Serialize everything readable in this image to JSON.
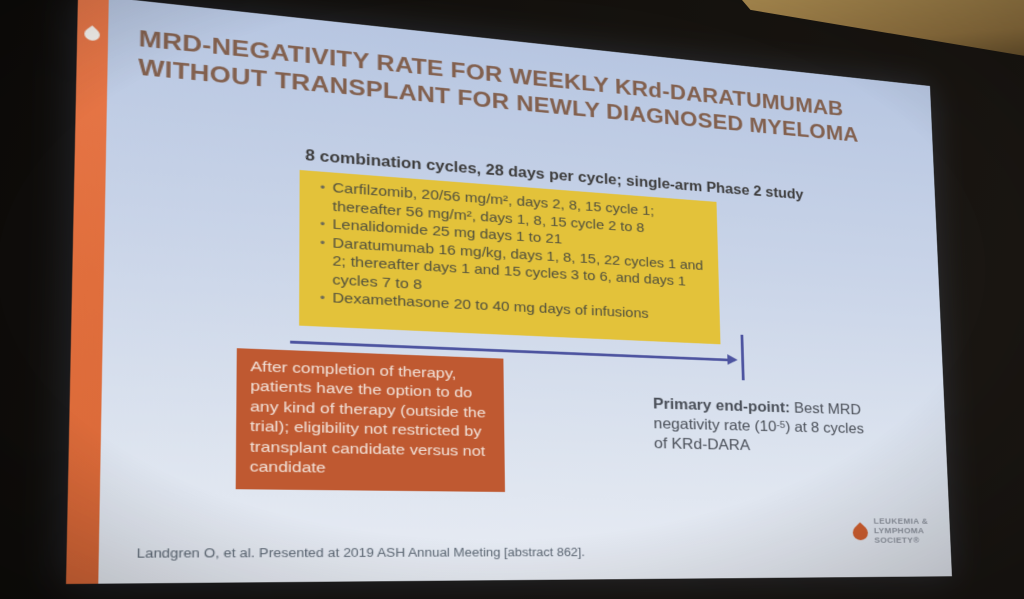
{
  "slide": {
    "title": {
      "line1": "MRD-NEGATIVITY RATE FOR WEEKLY KRd-DARATUMUMAB",
      "line2": "WITHOUT TRANSPLANT FOR NEWLY DIAGNOSED MYELOMA"
    },
    "study_design": "8 combination cycles, 28 days per cycle; single-arm Phase 2 study",
    "regimen_box": {
      "bullets": [
        "Carfilzomib, 20/56 mg/m², days 2, 8, 15 cycle 1; thereafter 56 mg/m², days 1, 8, 15 cycle 2 to 8",
        "Lenalidomide 25 mg days 1 to 21",
        "Daratumumab 16 mg/kg, days 1, 8, 15, 22 cycles 1 and 2; thereafter days 1 and 15 cycles 3 to 6, and days 1 cycles 7 to 8",
        "Dexamethasone 20 to 40 mg days of infusions"
      ]
    },
    "note_box": "After completion of therapy, patients have the option to do any kind of therapy (outside the trial); eligibility not restricted by transplant candidate versus not candidate",
    "endpoint": {
      "label": "Primary end-point:",
      "pre": " Best MRD negativity rate (10",
      "sup": "-5",
      "post": ") at 8 cycles of KRd-DARA"
    },
    "footer": "Landgren O, et al. Presented at 2019 ASH Annual Meeting [abstract 862].",
    "logo": {
      "line1": "LEUKEMIA &",
      "line2": "LYMPHOMA",
      "line3": "SOCIETY®"
    },
    "colors": {
      "accent_orange": "#e06e3c",
      "note_box_orange": "#bf5931",
      "highlight_yellow": "#e3c23a",
      "timeline_blue": "#4d54a0",
      "title_brown": "#82604e"
    }
  }
}
